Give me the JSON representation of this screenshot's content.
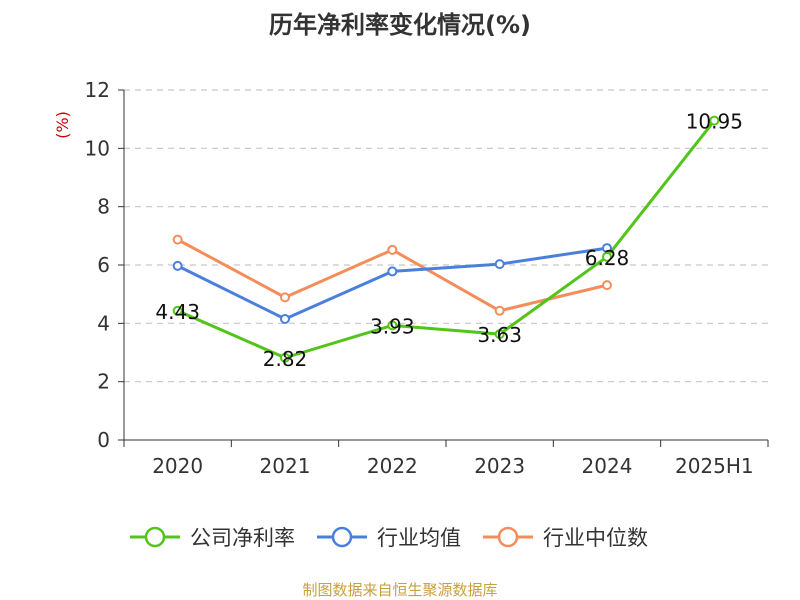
{
  "chart_data": {
    "type": "line",
    "title": "历年净利率变化情况(%)",
    "ylabel": "(%)",
    "xlabel": "",
    "ylim": [
      0,
      12
    ],
    "yticks": [
      0,
      2,
      4,
      6,
      8,
      10,
      12
    ],
    "categories": [
      "2020",
      "2021",
      "2022",
      "2023",
      "2024",
      "2025H1"
    ],
    "grid": true,
    "legend_position": "bottom",
    "series": [
      {
        "name": "公司净利率",
        "color": "#52c41a",
        "values": [
          4.43,
          2.82,
          3.93,
          3.63,
          6.28,
          10.95
        ],
        "show_labels": true
      },
      {
        "name": "行业均值",
        "color": "#4a7fdc",
        "values": [
          5.97,
          4.15,
          5.78,
          6.03,
          6.58,
          null
        ],
        "show_labels": false
      },
      {
        "name": "行业中位数",
        "color": "#f58d5a",
        "values": [
          6.87,
          4.89,
          6.52,
          4.43,
          5.31,
          null
        ],
        "show_labels": false
      }
    ]
  },
  "source": "制图数据来自恒生聚源数据库"
}
